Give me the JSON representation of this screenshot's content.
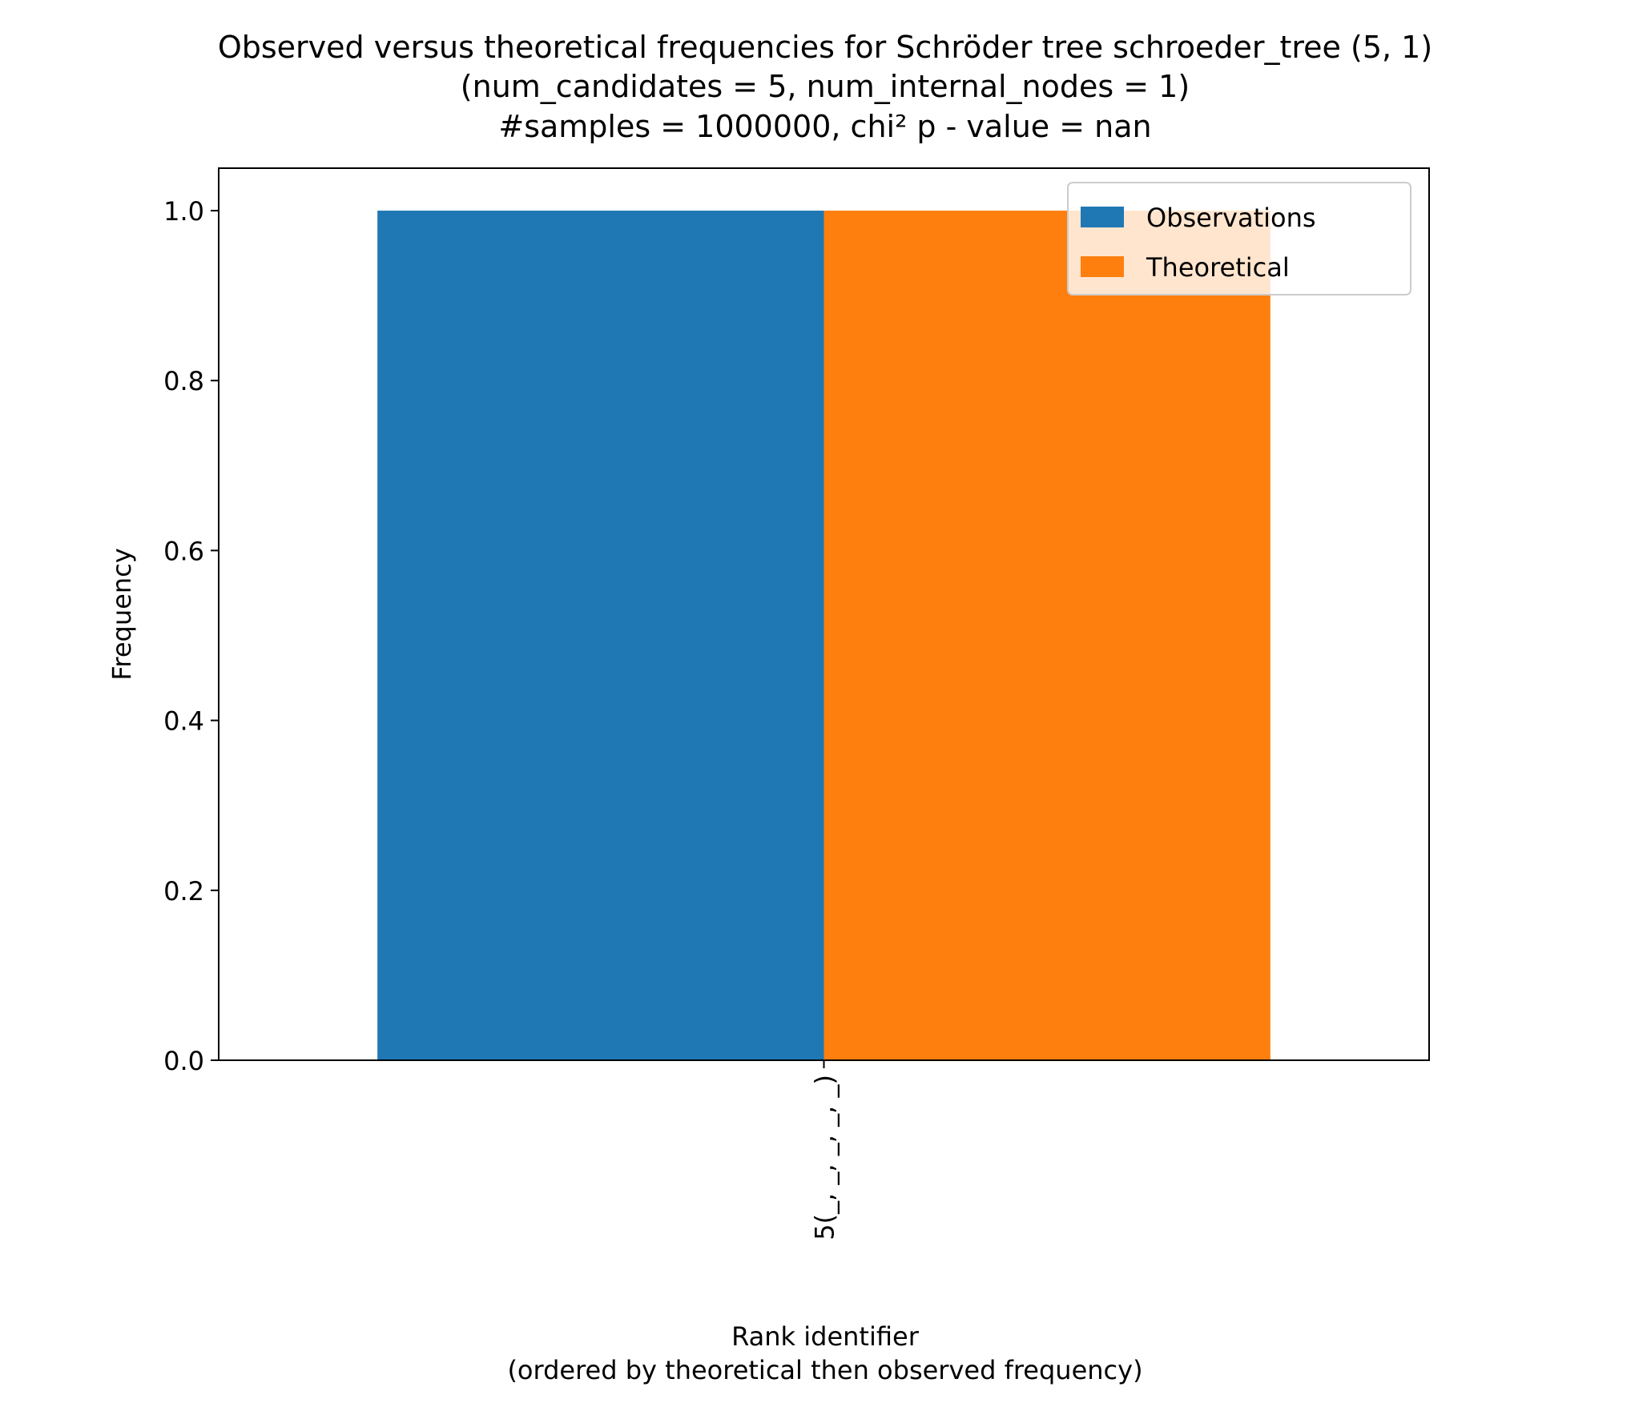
{
  "chart_data": {
    "type": "bar",
    "title_lines": [
      "Observed versus theoretical frequencies for Schröder tree schroeder_tree (5, 1)",
      "(num_candidates = 5, num_internal_nodes = 1)",
      "#samples = 1000000, chi² p - value = nan"
    ],
    "xlabel_lines": [
      "Rank identifier",
      "(ordered by theoretical then observed frequency)"
    ],
    "ylabel": "Frequency",
    "categories": [
      "5(_, _, _, _, _)"
    ],
    "series": [
      {
        "name": "Observations",
        "values": [
          1.0
        ],
        "color": "#1f77b4"
      },
      {
        "name": "Theoretical",
        "values": [
          1.0
        ],
        "color": "#ff7f0e"
      }
    ],
    "y_ticks": [
      0.0,
      0.2,
      0.4,
      0.6,
      0.8,
      1.0
    ],
    "y_tick_labels": [
      "0.0",
      "0.2",
      "0.4",
      "0.6",
      "0.8",
      "1.0"
    ],
    "ylim": [
      0,
      1.05
    ],
    "grid": false,
    "legend_position": "top-right"
  }
}
